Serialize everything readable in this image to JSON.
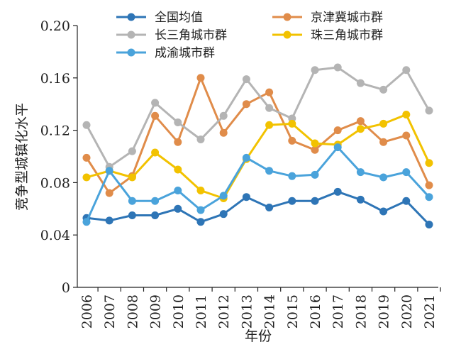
{
  "chart_data": {
    "type": "line",
    "xlabel": "年份",
    "ylabel": "竞争型城镇化水平",
    "ylim": [
      0,
      0.2
    ],
    "yticks": [
      0,
      0.04,
      0.08,
      0.12,
      0.16,
      0.2
    ],
    "ytick_labels": [
      "0",
      "0.04",
      "0.08",
      "0.12",
      "0.16",
      "0.20"
    ],
    "categories": [
      "2006",
      "2007",
      "2008",
      "2009",
      "2010",
      "2011",
      "2012",
      "2013",
      "2014",
      "2015",
      "2016",
      "2017",
      "2018",
      "2019",
      "2020",
      "2021"
    ],
    "grid": false,
    "legend_position": "top",
    "series": [
      {
        "name": "全国均值",
        "color": "#2e75b6",
        "values": [
          0.053,
          0.051,
          0.055,
          0.055,
          0.06,
          0.05,
          0.056,
          0.069,
          0.061,
          0.066,
          0.066,
          0.073,
          0.067,
          0.058,
          0.066,
          0.048
        ]
      },
      {
        "name": "京津冀城市群",
        "color": "#e08c4a",
        "values": [
          0.099,
          0.072,
          0.085,
          0.131,
          0.111,
          0.16,
          0.118,
          0.14,
          0.149,
          0.112,
          0.105,
          0.12,
          0.127,
          0.111,
          0.116,
          0.078
        ]
      },
      {
        "name": "长三角城市群",
        "color": "#b4b4b4",
        "values": [
          0.124,
          0.092,
          0.104,
          0.141,
          0.126,
          0.113,
          0.131,
          0.159,
          0.137,
          0.129,
          0.166,
          0.168,
          0.156,
          0.151,
          0.166,
          0.135
        ]
      },
      {
        "name": "珠三角城市群",
        "color": "#f2c200",
        "values": [
          0.084,
          0.089,
          0.084,
          0.103,
          0.09,
          0.074,
          0.068,
          0.098,
          0.124,
          0.125,
          0.11,
          0.109,
          0.121,
          0.125,
          0.132,
          0.095
        ]
      },
      {
        "name": "成渝城市群",
        "color": "#4aa3db",
        "values": [
          0.05,
          0.089,
          0.066,
          0.066,
          0.074,
          0.059,
          0.07,
          0.099,
          0.089,
          0.085,
          0.086,
          0.107,
          0.088,
          0.084,
          0.088,
          0.069
        ]
      }
    ]
  }
}
